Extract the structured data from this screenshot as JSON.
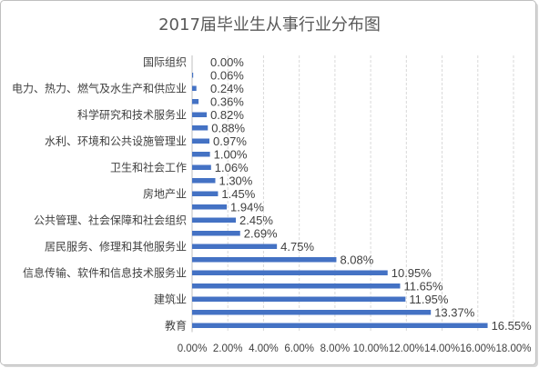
{
  "chart_data": {
    "type": "bar",
    "orientation": "horizontal",
    "title": "2017届毕业生从事行业分布图",
    "categories": [
      "国际组织",
      "",
      "电力、热力、燃气及水生产和供应业",
      "",
      "科学研究和技术服务业",
      "",
      "水利、环境和公共设施管理业",
      "",
      "卫生和社会工作",
      "",
      "房地产业",
      "",
      "公共管理、社会保障和社会组织",
      "",
      "居民服务、修理和其他服务业",
      "",
      "信息传输、软件和信息技术服务业",
      "",
      "建筑业",
      "",
      "教育"
    ],
    "values": [
      0.0,
      0.06,
      0.24,
      0.36,
      0.82,
      0.88,
      0.97,
      1.0,
      1.06,
      1.3,
      1.45,
      1.94,
      2.45,
      2.69,
      4.75,
      8.08,
      10.95,
      11.65,
      11.95,
      13.37,
      16.55
    ],
    "value_labels": [
      "0.00%",
      "0.06%",
      "0.24%",
      "0.36%",
      "0.82%",
      "0.88%",
      "0.97%",
      "1.00%",
      "1.06%",
      "1.30%",
      "1.45%",
      "1.94%",
      "2.45%",
      "2.69%",
      "4.75%",
      "8.08%",
      "10.95%",
      "11.65%",
      "11.95%",
      "13.37%",
      "16.55%"
    ],
    "xlim": [
      0,
      18
    ],
    "x_ticks": [
      0,
      2,
      4,
      6,
      8,
      10,
      12,
      14,
      16,
      18
    ],
    "x_tick_labels": [
      "0.00%",
      "2.00%",
      "4.00%",
      "6.00%",
      "8.00%",
      "10.00%",
      "12.00%",
      "14.00%",
      "16.00%",
      "18.00%"
    ],
    "grid": true,
    "legend": "none",
    "bar_color": "#4472c4"
  }
}
